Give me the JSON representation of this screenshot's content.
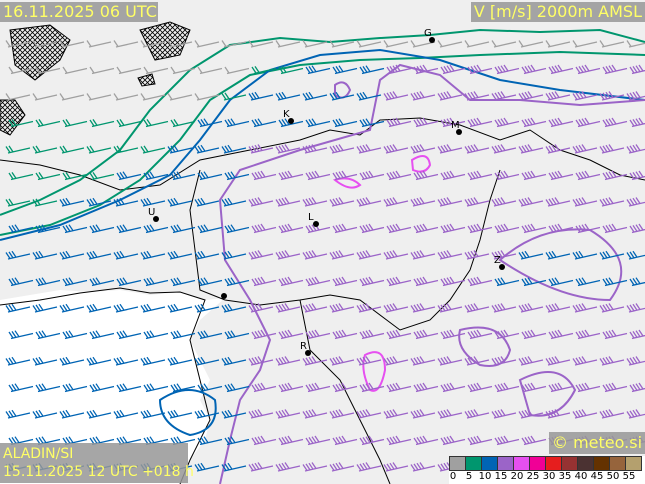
{
  "header": {
    "valid_time": "16.11.2025 06 UTC",
    "field_title": "V [m/s] 2000m AMSL"
  },
  "footer": {
    "model": "ALADIN/SI",
    "run_info": "15.11.2025 12 UTC +018 h",
    "copyright": "© meteo.si"
  },
  "legend": {
    "colors": [
      "#a0a0a0",
      "#00966e",
      "#0064b4",
      "#9b64c8",
      "#e650f0",
      "#f00096",
      "#e61e1e",
      "#963232",
      "#4b3232",
      "#643200",
      "#96643c",
      "#b4a06e"
    ],
    "ticks": [
      "0",
      "5",
      "10",
      "15",
      "20",
      "25",
      "30",
      "35",
      "40",
      "45",
      "50",
      "55"
    ]
  },
  "cities": [
    {
      "label": "G"
    },
    {
      "label": "K"
    },
    {
      "label": "M"
    },
    {
      "label": "U"
    },
    {
      "label": "L"
    },
    {
      "label": "Z"
    },
    {
      "label": ""
    },
    {
      "label": "R"
    }
  ],
  "map_colors": {
    "contour_5": "#00966e",
    "contour_10": "#0064b4",
    "contour_15": "#9b64c8",
    "contour_20": "#e650f0",
    "coastline": "#000000"
  }
}
